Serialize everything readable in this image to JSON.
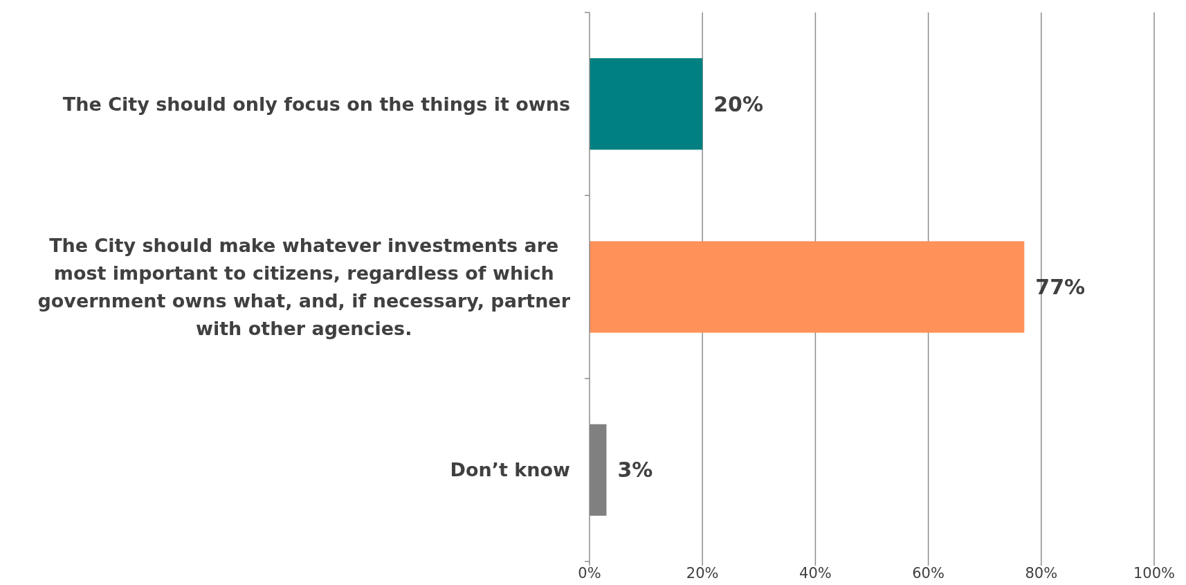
{
  "chart_data": {
    "type": "bar",
    "orientation": "horizontal",
    "categories": [
      "The City should only focus on the things it owns",
      "The City should make whatever investments are most important to citizens, regardless of which government owns what, and, if necessary, partner with other agencies.",
      "Don’t know"
    ],
    "values": [
      20,
      77,
      3
    ],
    "colors": [
      "#008080",
      "#ff9159",
      "#808080"
    ],
    "xlim": [
      0,
      100
    ],
    "xticks": [
      {
        "value": 0,
        "label": "0%"
      },
      {
        "value": 20,
        "label": "20%"
      },
      {
        "value": 40,
        "label": "40%"
      },
      {
        "value": 60,
        "label": "60%"
      },
      {
        "value": 80,
        "label": "80%"
      },
      {
        "value": 100,
        "label": "100%"
      }
    ],
    "value_labels": [
      "20%",
      "77%",
      "3%"
    ],
    "grid": "x"
  }
}
